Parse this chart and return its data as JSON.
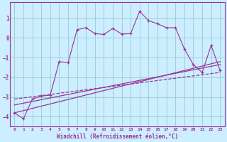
{
  "title": "",
  "xlabel": "Windchill (Refroidissement éolien,°C)",
  "ylabel": "",
  "bg_color": "#cceeff",
  "line_color": "#993399",
  "grid_color": "#99cccc",
  "ylim": [
    -4.5,
    1.8
  ],
  "xlim": [
    -0.5,
    23.5
  ],
  "xticks": [
    0,
    1,
    2,
    3,
    4,
    5,
    6,
    7,
    8,
    9,
    10,
    11,
    12,
    13,
    14,
    15,
    16,
    17,
    18,
    19,
    20,
    21,
    22,
    23
  ],
  "yticks": [
    -4,
    -3,
    -2,
    -1,
    0,
    1
  ],
  "series1_x": [
    0,
    1,
    2,
    3,
    4,
    5,
    6,
    7,
    8,
    9,
    10,
    11,
    12,
    13,
    14,
    15,
    16,
    17,
    18,
    19,
    20,
    21,
    22,
    23
  ],
  "series1_y": [
    -3.8,
    -4.1,
    -3.1,
    -2.95,
    -2.9,
    -1.2,
    -1.25,
    0.42,
    0.52,
    0.22,
    0.18,
    0.48,
    0.2,
    0.22,
    1.35,
    0.88,
    0.72,
    0.52,
    0.52,
    -0.55,
    -1.35,
    -1.75,
    -0.38,
    -1.65
  ],
  "trend1_x": [
    0,
    23
  ],
  "trend1_y": [
    -3.8,
    -1.2
  ],
  "trend2_x": [
    0,
    23
  ],
  "trend2_y": [
    -3.4,
    -1.35
  ],
  "trend3_x": [
    0,
    23
  ],
  "trend3_y": [
    -3.1,
    -1.75
  ]
}
